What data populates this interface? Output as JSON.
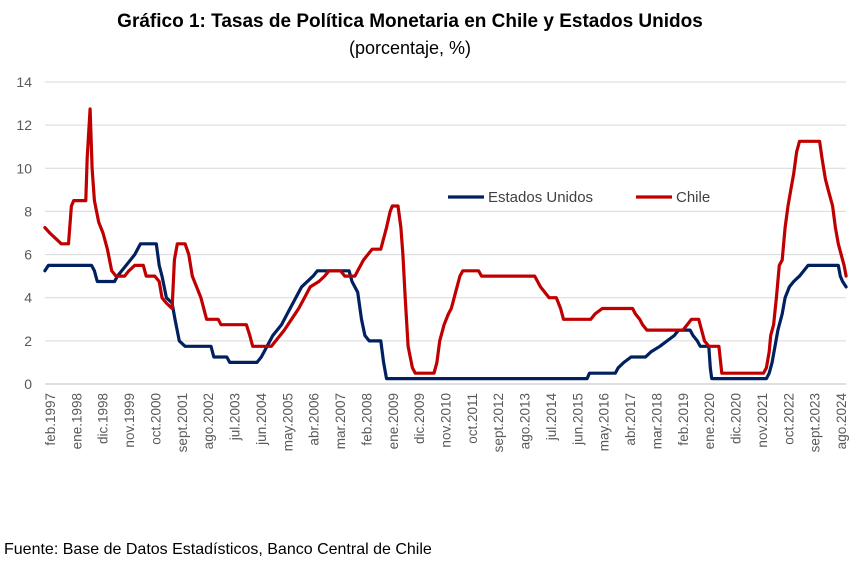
{
  "title": "Gráfico 1: Tasas de Política Monetaria en Chile y Estados Unidos",
  "subtitle": "(porcentaje, %)",
  "source": "Fuente: Base de Datos Estadísticos, Banco Central de Chile",
  "chart_data": {
    "type": "line",
    "title": "Gráfico 1: Tasas de Política Monetaria en Chile y Estados Unidos",
    "subtitle": "(porcentaje, %)",
    "xlabel": "",
    "ylabel": "",
    "ylim": [
      0,
      14
    ],
    "yticks": [
      0,
      2,
      4,
      6,
      8,
      10,
      12,
      14
    ],
    "xlim": [
      1997.083,
      2024.917
    ],
    "x_tick_labels": [
      "feb.1997",
      "ene.1998",
      "dic.1998",
      "nov.1999",
      "oct.2000",
      "sept.2001",
      "ago.2002",
      "jul.2003",
      "jun.2004",
      "may.2005",
      "abr.2006",
      "mar.2007",
      "feb.2008",
      "ene.2009",
      "dic.2009",
      "nov.2010",
      "oct.2011",
      "sept.2012",
      "ago.2013",
      "jul.2014",
      "jun.2015",
      "may.2016",
      "abr.2017",
      "mar.2018",
      "feb.2019",
      "ene.2020",
      "dic.2020",
      "nov.2021",
      "oct.2022",
      "sept.2023",
      "ago.2024"
    ],
    "grid": true,
    "legend_position": "center-right",
    "series": [
      {
        "name": "Estados Unidos",
        "color": "#002060",
        "points": [
          [
            1997.08,
            5.25
          ],
          [
            1997.2,
            5.5
          ],
          [
            1998.0,
            5.5
          ],
          [
            1998.7,
            5.5
          ],
          [
            1998.8,
            5.25
          ],
          [
            1998.9,
            4.75
          ],
          [
            1999.5,
            4.75
          ],
          [
            1999.6,
            5.0
          ],
          [
            1999.9,
            5.5
          ],
          [
            2000.2,
            6.0
          ],
          [
            2000.4,
            6.5
          ],
          [
            2000.95,
            6.5
          ],
          [
            2001.05,
            5.5
          ],
          [
            2001.15,
            5.0
          ],
          [
            2001.3,
            4.0
          ],
          [
            2001.5,
            3.75
          ],
          [
            2001.6,
            3.0
          ],
          [
            2001.75,
            2.0
          ],
          [
            2001.95,
            1.75
          ],
          [
            2002.85,
            1.75
          ],
          [
            2002.95,
            1.25
          ],
          [
            2003.4,
            1.25
          ],
          [
            2003.5,
            1.0
          ],
          [
            2004.45,
            1.0
          ],
          [
            2004.6,
            1.25
          ],
          [
            2004.7,
            1.5
          ],
          [
            2005.0,
            2.25
          ],
          [
            2005.3,
            2.75
          ],
          [
            2005.5,
            3.25
          ],
          [
            2006.0,
            4.5
          ],
          [
            2006.4,
            5.0
          ],
          [
            2006.55,
            5.25
          ],
          [
            2007.65,
            5.25
          ],
          [
            2007.75,
            4.75
          ],
          [
            2007.95,
            4.25
          ],
          [
            2008.08,
            3.0
          ],
          [
            2008.2,
            2.25
          ],
          [
            2008.35,
            2.0
          ],
          [
            2008.75,
            2.0
          ],
          [
            2008.85,
            1.0
          ],
          [
            2008.95,
            0.25
          ],
          [
            2015.92,
            0.25
          ],
          [
            2016.0,
            0.5
          ],
          [
            2016.9,
            0.5
          ],
          [
            2017.0,
            0.75
          ],
          [
            2017.2,
            1.0
          ],
          [
            2017.45,
            1.25
          ],
          [
            2017.95,
            1.25
          ],
          [
            2018.15,
            1.5
          ],
          [
            2018.45,
            1.75
          ],
          [
            2018.7,
            2.0
          ],
          [
            2018.95,
            2.25
          ],
          [
            2019.1,
            2.5
          ],
          [
            2019.5,
            2.5
          ],
          [
            2019.6,
            2.25
          ],
          [
            2019.75,
            2.0
          ],
          [
            2019.85,
            1.75
          ],
          [
            2020.15,
            1.75
          ],
          [
            2020.2,
            0.75
          ],
          [
            2020.25,
            0.25
          ],
          [
            2022.15,
            0.25
          ],
          [
            2022.25,
            0.5
          ],
          [
            2022.35,
            1.0
          ],
          [
            2022.45,
            1.75
          ],
          [
            2022.55,
            2.5
          ],
          [
            2022.7,
            3.25
          ],
          [
            2022.8,
            4.0
          ],
          [
            2022.95,
            4.5
          ],
          [
            2023.1,
            4.75
          ],
          [
            2023.3,
            5.0
          ],
          [
            2023.45,
            5.25
          ],
          [
            2023.6,
            5.5
          ],
          [
            2024.65,
            5.5
          ],
          [
            2024.72,
            5.0
          ],
          [
            2024.8,
            4.75
          ],
          [
            2024.92,
            4.5
          ]
        ]
      },
      {
        "name": "Chile",
        "color": "#C00000",
        "points": [
          [
            1997.08,
            7.25
          ],
          [
            1997.25,
            7.0
          ],
          [
            1997.45,
            6.75
          ],
          [
            1997.65,
            6.5
          ],
          [
            1997.9,
            6.5
          ],
          [
            1998.0,
            8.25
          ],
          [
            1998.08,
            8.5
          ],
          [
            1998.5,
            8.5
          ],
          [
            1998.55,
            10.5
          ],
          [
            1998.65,
            12.75
          ],
          [
            1998.72,
            10.0
          ],
          [
            1998.8,
            8.5
          ],
          [
            1998.95,
            7.5
          ],
          [
            1999.1,
            7.0
          ],
          [
            1999.25,
            6.25
          ],
          [
            1999.4,
            5.25
          ],
          [
            1999.55,
            5.0
          ],
          [
            1999.85,
            5.0
          ],
          [
            2000.0,
            5.25
          ],
          [
            2000.2,
            5.5
          ],
          [
            2000.5,
            5.5
          ],
          [
            2000.6,
            5.0
          ],
          [
            2000.9,
            5.0
          ],
          [
            2001.05,
            4.75
          ],
          [
            2001.15,
            4.0
          ],
          [
            2001.3,
            3.75
          ],
          [
            2001.5,
            3.5
          ],
          [
            2001.58,
            5.75
          ],
          [
            2001.68,
            6.5
          ],
          [
            2001.95,
            6.5
          ],
          [
            2002.08,
            6.0
          ],
          [
            2002.2,
            5.0
          ],
          [
            2002.35,
            4.5
          ],
          [
            2002.5,
            4.0
          ],
          [
            2002.7,
            3.0
          ],
          [
            2003.1,
            3.0
          ],
          [
            2003.2,
            2.75
          ],
          [
            2004.08,
            2.75
          ],
          [
            2004.2,
            2.25
          ],
          [
            2004.3,
            1.75
          ],
          [
            2004.95,
            1.75
          ],
          [
            2005.1,
            2.0
          ],
          [
            2005.4,
            2.5
          ],
          [
            2005.65,
            3.0
          ],
          [
            2005.9,
            3.5
          ],
          [
            2006.1,
            4.0
          ],
          [
            2006.3,
            4.5
          ],
          [
            2006.6,
            4.75
          ],
          [
            2006.8,
            5.0
          ],
          [
            2006.95,
            5.25
          ],
          [
            2007.35,
            5.25
          ],
          [
            2007.5,
            5.0
          ],
          [
            2007.85,
            5.0
          ],
          [
            2007.95,
            5.25
          ],
          [
            2008.15,
            5.75
          ],
          [
            2008.3,
            6.0
          ],
          [
            2008.45,
            6.25
          ],
          [
            2008.75,
            6.25
          ],
          [
            2008.95,
            7.25
          ],
          [
            2009.08,
            8.0
          ],
          [
            2009.15,
            8.25
          ],
          [
            2009.35,
            8.25
          ],
          [
            2009.45,
            7.25
          ],
          [
            2009.52,
            6.0
          ],
          [
            2009.6,
            4.0
          ],
          [
            2009.7,
            1.75
          ],
          [
            2009.85,
            0.75
          ],
          [
            2009.95,
            0.5
          ],
          [
            2010.6,
            0.5
          ],
          [
            2010.7,
            1.0
          ],
          [
            2010.8,
            2.0
          ],
          [
            2010.95,
            2.75
          ],
          [
            2011.1,
            3.25
          ],
          [
            2011.2,
            3.5
          ],
          [
            2011.35,
            4.25
          ],
          [
            2011.5,
            5.0
          ],
          [
            2011.6,
            5.25
          ],
          [
            2012.15,
            5.25
          ],
          [
            2012.25,
            5.0
          ],
          [
            2014.1,
            5.0
          ],
          [
            2014.3,
            4.5
          ],
          [
            2014.45,
            4.25
          ],
          [
            2014.6,
            4.0
          ],
          [
            2014.85,
            4.0
          ],
          [
            2015.0,
            3.5
          ],
          [
            2015.1,
            3.0
          ],
          [
            2016.05,
            3.0
          ],
          [
            2016.2,
            3.25
          ],
          [
            2016.45,
            3.5
          ],
          [
            2017.5,
            3.5
          ],
          [
            2017.6,
            3.25
          ],
          [
            2017.75,
            3.0
          ],
          [
            2017.85,
            2.75
          ],
          [
            2018.0,
            2.5
          ],
          [
            2019.25,
            2.5
          ],
          [
            2019.4,
            2.75
          ],
          [
            2019.55,
            3.0
          ],
          [
            2019.8,
            3.0
          ],
          [
            2019.9,
            2.5
          ],
          [
            2020.0,
            2.0
          ],
          [
            2020.15,
            1.75
          ],
          [
            2020.5,
            1.75
          ],
          [
            2020.6,
            0.5
          ],
          [
            2022.05,
            0.5
          ],
          [
            2022.15,
            0.75
          ],
          [
            2022.25,
            1.5
          ],
          [
            2022.3,
            2.25
          ],
          [
            2022.4,
            2.75
          ],
          [
            2022.5,
            4.0
          ],
          [
            2022.6,
            5.5
          ],
          [
            2022.7,
            5.75
          ],
          [
            2022.8,
            7.25
          ],
          [
            2022.9,
            8.25
          ],
          [
            2023.0,
            9.0
          ],
          [
            2023.1,
            9.75
          ],
          [
            2023.2,
            10.75
          ],
          [
            2023.3,
            11.25
          ],
          [
            2024.0,
            11.25
          ],
          [
            2024.08,
            10.5
          ],
          [
            2024.2,
            9.5
          ],
          [
            2024.3,
            9.0
          ],
          [
            2024.45,
            8.25
          ],
          [
            2024.55,
            7.25
          ],
          [
            2024.65,
            6.5
          ],
          [
            2024.8,
            5.75
          ],
          [
            2024.85,
            5.5
          ],
          [
            2024.92,
            5.0
          ]
        ]
      }
    ]
  }
}
